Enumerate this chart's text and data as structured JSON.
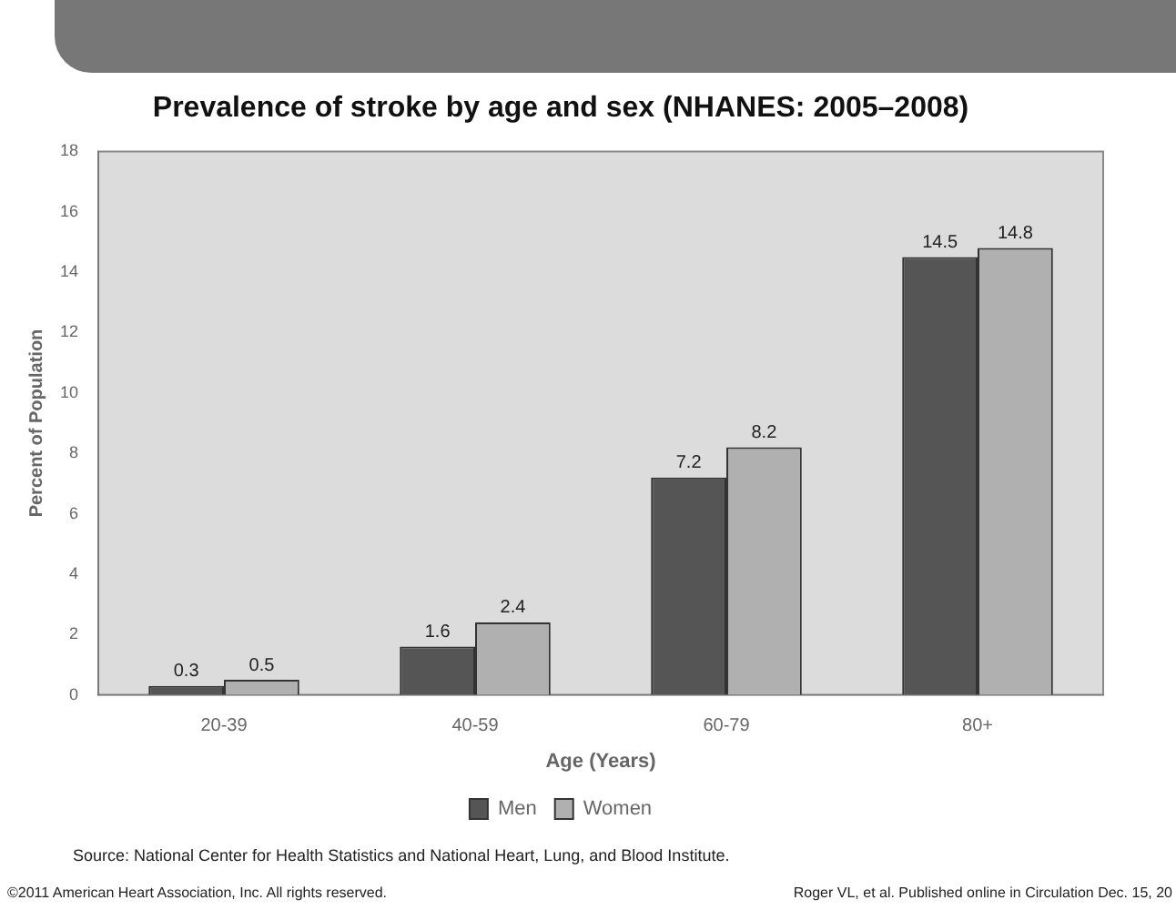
{
  "chart_data": {
    "type": "bar",
    "title": "Prevalence of stroke by age and sex (NHANES: 2005–2008)",
    "xlabel": "Age (Years)",
    "ylabel": "Percent of Population",
    "categories": [
      "20-39",
      "40-59",
      "60-79",
      "80+"
    ],
    "series": [
      {
        "name": "Men",
        "color": "#555555",
        "values": [
          0.3,
          1.6,
          7.2,
          14.5
        ]
      },
      {
        "name": "Women",
        "color": "#b0b0b0",
        "values": [
          0.5,
          2.4,
          8.2,
          14.8
        ]
      }
    ],
    "ylim": [
      0,
      18
    ],
    "yticks": [
      0,
      2,
      4,
      6,
      8,
      10,
      12,
      14,
      16,
      18
    ],
    "grid": false,
    "legend": "bottom",
    "data_labels": true,
    "annotations": [
      "Source: National Center for Health Statistics and National Heart, Lung, and Blood Institute.",
      "©2011 American Heart Association, Inc. All rights reserved.",
      "Roger VL, et al. Published online in Circulation Dec. 15, 20"
    ]
  }
}
